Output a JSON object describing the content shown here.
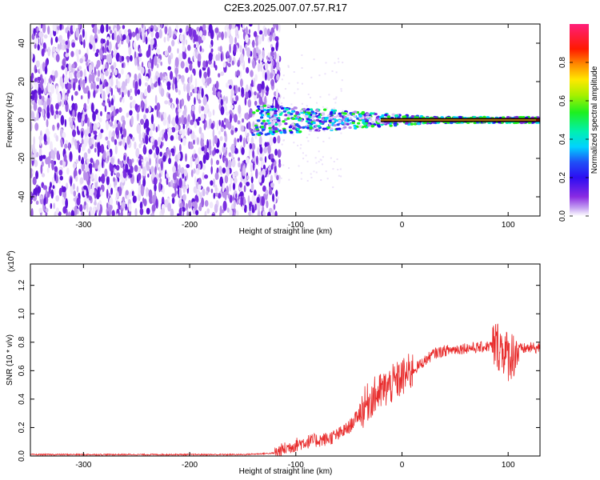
{
  "title": "C2E3.2025.007.07.57.R17",
  "chart_data": [
    {
      "type": "heatmap",
      "xlabel": "Height of straight line (km)",
      "ylabel": "Frequency (Hz)",
      "xlim": [
        -350,
        130
      ],
      "ylim": [
        -50,
        50
      ],
      "xticks": [
        -300,
        -200,
        -100,
        0,
        100
      ],
      "yticks": [
        -40,
        -20,
        0,
        20,
        40
      ],
      "noise_region_x": [
        -350,
        -115
      ],
      "signal_band": {
        "x_start": -140,
        "x_end": 130,
        "center_freq": 0,
        "half_width_start": 8,
        "half_width_end": 1.5
      },
      "colorbar": {
        "label": "Normalized spectral amplitude",
        "range": [
          0.0,
          1.0
        ],
        "ticks": [
          0.0,
          0.2,
          0.4,
          0.6,
          0.8
        ],
        "tick_labels": [
          "0.0",
          "0.2",
          "0.4",
          "0.6",
          "0.8"
        ]
      }
    },
    {
      "type": "line",
      "xlabel": "Height of straight line (km)",
      "ylabel": "SNR (10 * v/v)",
      "scale_label_base": "(x10",
      "scale_label_exp": "4",
      "scale_label_close": ")",
      "xlim": [
        -350,
        130
      ],
      "ylim": [
        0,
        1.35
      ],
      "xticks": [
        -300,
        -200,
        -100,
        0,
        100
      ],
      "yticks": [
        0.0,
        0.2,
        0.4,
        0.6,
        0.8,
        1.0,
        1.2
      ],
      "ytick_labels": [
        "0.0",
        "0.2",
        "0.4",
        "0.6",
        "0.8",
        "1.0",
        "1.2"
      ],
      "series": [
        {
          "color": "#e82c2c",
          "x": [
            -350,
            -300,
            -250,
            -200,
            -150,
            -120,
            -110,
            -100,
            -90,
            -80,
            -70,
            -60,
            -50,
            -40,
            -30,
            -20,
            -10,
            0,
            10,
            20,
            30,
            40,
            50,
            60,
            70,
            80,
            90,
            95,
            100,
            105,
            110,
            120,
            130
          ],
          "y": [
            0.01,
            0.01,
            0.01,
            0.01,
            0.01,
            0.02,
            0.05,
            0.08,
            0.1,
            0.11,
            0.12,
            0.15,
            0.2,
            0.3,
            0.4,
            0.45,
            0.5,
            0.55,
            0.6,
            0.66,
            0.72,
            0.74,
            0.75,
            0.76,
            0.76,
            0.77,
            0.78,
            0.75,
            0.7,
            0.72,
            0.75,
            0.76,
            0.76
          ]
        }
      ]
    }
  ]
}
